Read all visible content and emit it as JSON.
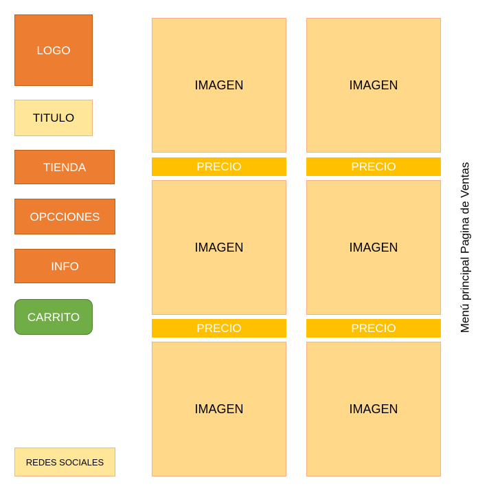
{
  "sidebar": {
    "logo": "LOGO",
    "title": "TITULO",
    "store": "TIENDA",
    "options": "OPCCIONES",
    "info": "INFO",
    "cart": "CARRITO",
    "social": "REDES SOCIALES"
  },
  "products": [
    {
      "image": "IMAGEN",
      "price": "PRECIO"
    },
    {
      "image": "IMAGEN",
      "price": "PRECIO"
    },
    {
      "image": "IMAGEN",
      "price": "PRECIO"
    },
    {
      "image": "IMAGEN",
      "price": "PRECIO"
    },
    {
      "image": "IMAGEN"
    },
    {
      "image": "IMAGEN"
    }
  ],
  "side_title": "Menú principal Pagina de Ventas",
  "colors": {
    "orange": "#ed7d31",
    "pale_yellow": "#ffe699",
    "image_fill": "#ffd88a",
    "price_bar": "#ffc000",
    "green": "#70ad47"
  }
}
